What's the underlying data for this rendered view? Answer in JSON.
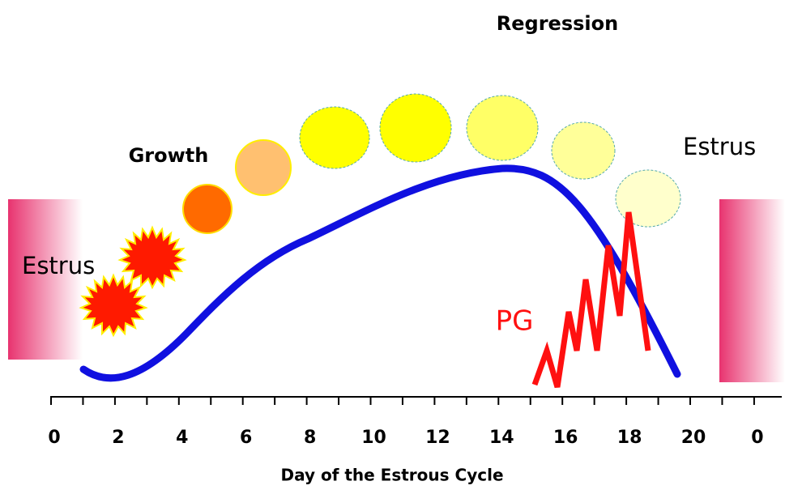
{
  "labels": {
    "regression": "Regression",
    "growth": "Growth",
    "estrus_left": "Estrus",
    "estrus_right": "Estrus",
    "pg": "PG"
  },
  "axis": {
    "ticks": [
      "0",
      "2",
      "4",
      "6",
      "8",
      "10",
      "12",
      "14",
      "16",
      "18",
      "20",
      "0"
    ],
    "title": "Day of the Estrous Cycle"
  }
}
